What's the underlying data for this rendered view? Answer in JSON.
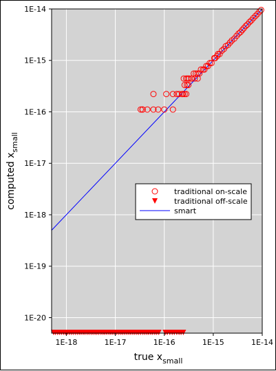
{
  "chart_data": {
    "type": "scatter",
    "title": "",
    "xlabel": {
      "main": "true x",
      "sub": "small"
    },
    "ylabel": {
      "main": "computed x",
      "sub": "small"
    },
    "xscale": "log",
    "yscale": "log",
    "xlim": [
      5e-19,
      1e-14
    ],
    "ylim": [
      5e-21,
      1e-14
    ],
    "grid": true,
    "background": "#d3d3d3",
    "legend_position": "center-right",
    "x_ticks": [
      {
        "value": 1e-18,
        "label": "1E-18"
      },
      {
        "value": 1e-17,
        "label": "1E-17"
      },
      {
        "value": 1e-16,
        "label": "1E-16"
      },
      {
        "value": 1e-15,
        "label": "1E-15"
      },
      {
        "value": 1e-14,
        "label": "1E-14"
      }
    ],
    "y_ticks": [
      {
        "value": 1e-20,
        "label": "1E-20"
      },
      {
        "value": 1e-19,
        "label": "1E-19"
      },
      {
        "value": 1e-18,
        "label": "1E-18"
      },
      {
        "value": 1e-17,
        "label": "1E-17"
      },
      {
        "value": 1e-16,
        "label": "1E-16"
      },
      {
        "value": 1e-15,
        "label": "1E-15"
      },
      {
        "value": 1e-14,
        "label": "1E-14"
      }
    ],
    "series": [
      {
        "name": "traditional on-scale",
        "marker": "open-circle",
        "color": "#ff0000",
        "x": [
          3.3e-17,
          3.6e-17,
          4.5e-17,
          6e-17,
          7.5e-17,
          1e-16,
          1.5e-16,
          3.6e-17,
          6e-17,
          1.1e-16,
          1.5e-16,
          2e-16,
          2.3e-16,
          2.6e-16,
          2.8e-16,
          1.8e-16,
          2.4e-16,
          2.6e-16,
          2.9e-16,
          3.1e-16,
          2.5e-16,
          3e-16,
          3.6e-16,
          2.8e-16,
          3.2e-16,
          3.6e-16,
          4.2e-16,
          4.8e-16,
          4e-16,
          4.4e-16,
          4.8e-16,
          5.2e-16,
          5.6e-16,
          6.2e-16,
          6.6e-16,
          7.2e-16,
          7.8e-16,
          8.5e-16,
          9.2e-16,
          1.05e-15,
          1.2e-15,
          1.35e-15,
          1.5e-15,
          1.65e-15,
          1.8e-15,
          2e-15,
          2.2e-15,
          2.4e-15,
          2.7e-15,
          3e-15,
          3.3e-15,
          3.6e-15,
          3.9e-15,
          4.2e-15,
          4.6e-15,
          5e-15,
          5.5e-15,
          6e-15,
          6.6e-15,
          7.3e-15,
          8e-15,
          8.8e-15,
          9.5e-15,
          1.25e-15,
          1.1e-15
        ],
        "y": [
          1.11e-16,
          1.11e-16,
          1.11e-16,
          1.11e-16,
          1.11e-16,
          1.11e-16,
          1.11e-16,
          1.11e-16,
          2.22e-16,
          2.22e-16,
          2.22e-16,
          2.22e-16,
          2.22e-16,
          2.22e-16,
          2.22e-16,
          2.22e-16,
          2.22e-16,
          3.33e-16,
          3.33e-16,
          3.33e-16,
          4.44e-16,
          4.44e-16,
          4.44e-16,
          4.44e-16,
          4.44e-16,
          4.44e-16,
          4.44e-16,
          4.44e-16,
          5.55e-16,
          5.55e-16,
          5.55e-16,
          5.55e-16,
          6.66e-16,
          6.66e-16,
          6.66e-16,
          7.77e-16,
          7.77e-16,
          8.88e-16,
          8.88e-16,
          1.11e-15,
          1.22e-15,
          1.33e-15,
          1.55e-15,
          1.67e-15,
          1.89e-15,
          2e-15,
          2.22e-15,
          2.44e-15,
          2.66e-15,
          3e-15,
          3.33e-15,
          3.55e-15,
          3.89e-15,
          4.22e-15,
          4.66e-15,
          5e-15,
          5.55e-15,
          6e-15,
          6.66e-15,
          7.33e-15,
          8e-15,
          8.88e-15,
          9.55e-15,
          1.33e-15,
          1.11e-15
        ]
      },
      {
        "name": "traditional off-scale",
        "marker": "filled-triangle-down",
        "color": "#ff0000",
        "x": [
          5.5e-19,
          6e-19,
          6.6e-19,
          7.2e-19,
          7.9e-19,
          8.7e-19,
          9.5e-19,
          1.05e-18,
          1.15e-18,
          1.26e-18,
          1.38e-18,
          1.52e-18,
          1.67e-18,
          1.83e-18,
          2e-18,
          2.2e-18,
          2.4e-18,
          2.65e-18,
          2.9e-18,
          3.2e-18,
          3.5e-18,
          3.85e-18,
          4.2e-18,
          4.6e-18,
          5.1e-18,
          5.6e-18,
          6.1e-18,
          6.7e-18,
          7.4e-18,
          8.1e-18,
          8.9e-18,
          9.8e-18,
          1.07e-17,
          1.18e-17,
          1.3e-17,
          1.42e-17,
          1.56e-17,
          1.72e-17,
          1.89e-17,
          2.07e-17,
          2.28e-17,
          2.5e-17,
          2.75e-17,
          3e-17,
          3.3e-17,
          3.65e-17,
          4e-17,
          4.4e-17,
          4.8e-17,
          5.3e-17,
          5.8e-17,
          6.4e-17,
          7e-17,
          7.7e-17,
          1.05e-16,
          1.15e-16,
          1.3e-16,
          1.45e-16,
          1.6e-16,
          1.8e-16,
          2e-16,
          2.2e-16,
          2.45e-16
        ],
        "y_position": "below-axis-floor"
      },
      {
        "name": "smart",
        "type": "line",
        "color": "#0000ff",
        "x": [
          5e-19,
          1e-14
        ],
        "y": [
          5e-19,
          1e-14
        ]
      }
    ]
  }
}
